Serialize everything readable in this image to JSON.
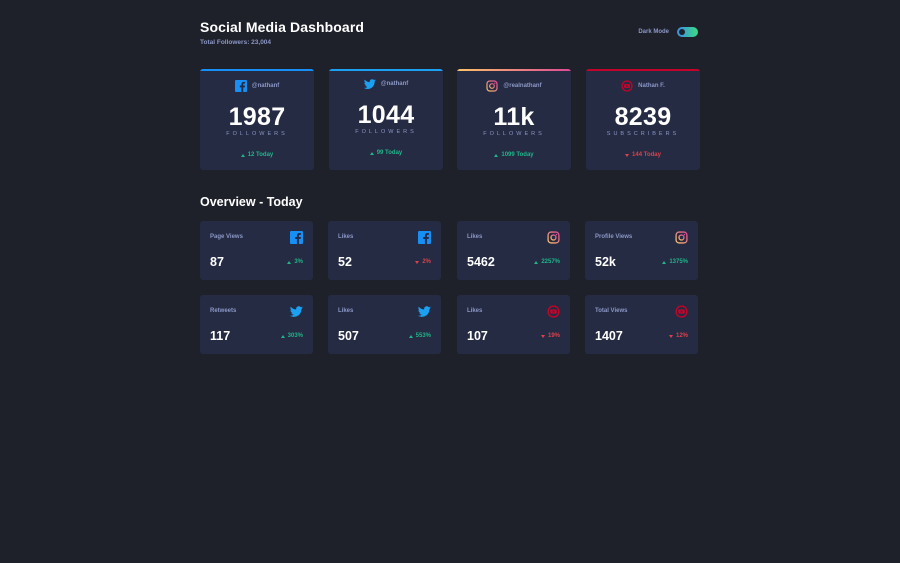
{
  "header": {
    "title": "Social Media Dashboard",
    "total_followers": "Total Followers: 23,004",
    "dark_mode_label": "Dark Mode",
    "dark_mode_on": true
  },
  "colors": {
    "facebook": "#178ff5",
    "twitter": "#1ca0f2",
    "instagram_gradient": [
      "#fdc468",
      "#df4996"
    ],
    "youtube": "#c4032a",
    "up": "#1eb589",
    "down": "#dc414c"
  },
  "cards": [
    {
      "network": "facebook",
      "icon": "facebook-icon",
      "handle": "@nathanf",
      "count": "1987",
      "label": "FOLLOWERS",
      "change": "12 Today",
      "direction": "up"
    },
    {
      "network": "twitter",
      "icon": "twitter-icon",
      "handle": "@nathanf",
      "count": "1044",
      "label": "FOLLOWERS",
      "change": "99 Today",
      "direction": "up"
    },
    {
      "network": "instagram",
      "icon": "instagram-icon",
      "handle": "@realnathanf",
      "count": "11k",
      "label": "FOLLOWERS",
      "change": "1099 Today",
      "direction": "up"
    },
    {
      "network": "youtube",
      "icon": "youtube-icon",
      "handle": "Nathan F.",
      "count": "8239",
      "label": "SUBSCRIBERS",
      "change": "144 Today",
      "direction": "down"
    }
  ],
  "overview": {
    "title": "Overview - Today",
    "items": [
      {
        "label": "Page Views",
        "icon": "facebook-icon",
        "value": "87",
        "change": "3%",
        "direction": "up"
      },
      {
        "label": "Likes",
        "icon": "facebook-icon",
        "value": "52",
        "change": "2%",
        "direction": "down"
      },
      {
        "label": "Likes",
        "icon": "instagram-icon",
        "value": "5462",
        "change": "2257%",
        "direction": "up"
      },
      {
        "label": "Profile Views",
        "icon": "instagram-icon",
        "value": "52k",
        "change": "1375%",
        "direction": "up"
      },
      {
        "label": "Retweets",
        "icon": "twitter-icon",
        "value": "117",
        "change": "303%",
        "direction": "up"
      },
      {
        "label": "Likes",
        "icon": "twitter-icon",
        "value": "507",
        "change": "553%",
        "direction": "up"
      },
      {
        "label": "Likes",
        "icon": "youtube-icon",
        "value": "107",
        "change": "19%",
        "direction": "down"
      },
      {
        "label": "Total Views",
        "icon": "youtube-icon",
        "value": "1407",
        "change": "12%",
        "direction": "down"
      }
    ]
  }
}
